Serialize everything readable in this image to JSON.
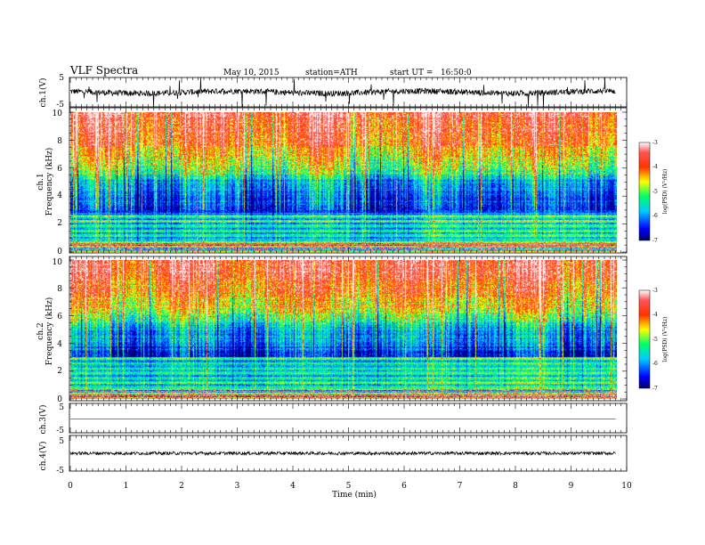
{
  "header": {
    "title": "VLF Spectra",
    "date": "May 10, 2015",
    "station": "station=ATH",
    "start": "start UT =   16:50:0"
  },
  "chart_data": {
    "type": "heatmap",
    "x": {
      "label": "Time (min)",
      "range": [
        0,
        10
      ],
      "ticks": [
        "0",
        "1",
        "2",
        "3",
        "4",
        "5",
        "6",
        "7",
        "8",
        "9",
        "10"
      ],
      "data_end": 9.8
    },
    "panels": [
      {
        "kind": "line",
        "ylabel": "ch.1(V)",
        "yrange": [
          -5,
          5
        ],
        "yticks": [
          "5",
          "-5"
        ],
        "noise_amp": 1.0,
        "offset": 0.0,
        "spikes": true
      },
      {
        "kind": "heatmap",
        "ylabel_a": "ch.1",
        "ylabel_b": "Frequency (kHz)",
        "yrange": [
          0,
          10
        ],
        "yticks": [
          "0",
          "2",
          "4",
          "6",
          "8",
          "10"
        ],
        "colorbar": {
          "label": "log(PSD) (V²/Hz)",
          "range": [
            -7,
            -3
          ],
          "ticks": [
            "-7",
            "-6",
            "-5",
            "-4",
            "-3"
          ]
        },
        "transition_min": 6.4
      },
      {
        "kind": "heatmap",
        "ylabel_a": "ch.2",
        "ylabel_b": "Frequency (kHz)",
        "yrange": [
          0,
          10
        ],
        "yticks": [
          "0",
          "2",
          "4",
          "6",
          "8",
          "10"
        ],
        "colorbar": {
          "label": "log(PSD) (V²/Hz)",
          "range": [
            -7,
            -3
          ],
          "ticks": [
            "-7",
            "-6",
            "-5",
            "-4",
            "-3"
          ]
        },
        "transition_min": 6.4
      },
      {
        "kind": "line",
        "ylabel": "ch.3(V)",
        "yrange": [
          -5,
          5
        ],
        "yticks": [
          "5",
          "-5"
        ],
        "noise_amp": 0.05,
        "offset": -0.3,
        "spikes": false
      },
      {
        "kind": "line",
        "ylabel": "ch.4(V)",
        "yrange": [
          -5,
          5
        ],
        "yticks": [
          "5",
          "-5"
        ],
        "noise_amp": 0.45,
        "offset": 0.0,
        "spikes": false
      }
    ]
  }
}
